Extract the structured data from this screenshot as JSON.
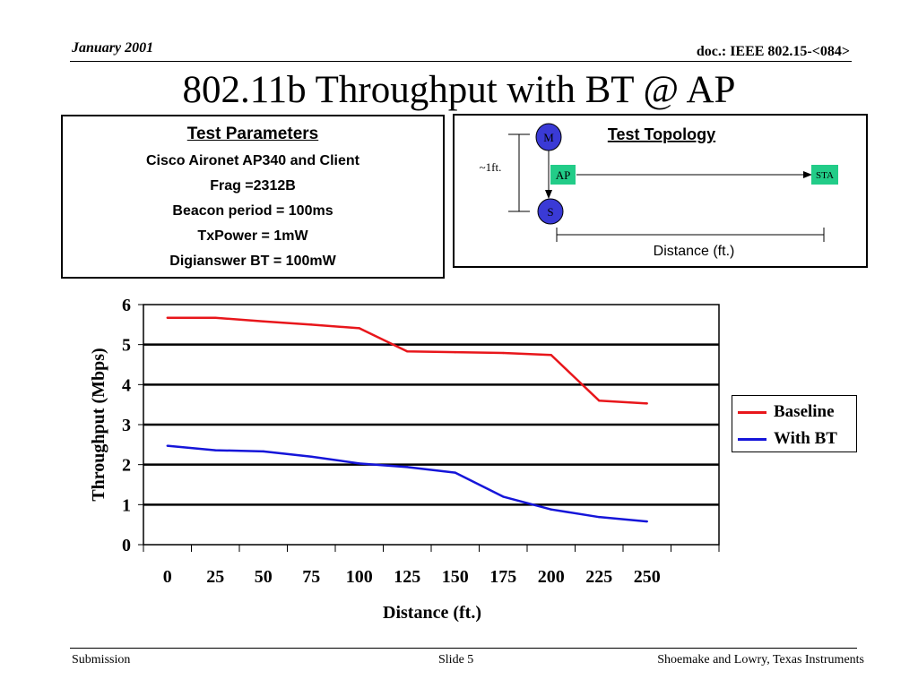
{
  "header": {
    "date": "January 2001",
    "doc": "doc.: IEEE 802.15-<084>"
  },
  "title": "802.11b Throughput with BT @ AP",
  "test_parameters": {
    "heading": "Test Parameters",
    "lines": [
      "Cisco Aironet AP340 and Client",
      "Frag =2312B",
      "Beacon period = 100ms",
      "TxPower = 1mW",
      "Digianswer BT = 100mW"
    ]
  },
  "topology": {
    "heading": "Test Topology",
    "node_m": "M",
    "node_s": "S",
    "node_ap": "AP",
    "node_sta": "STA",
    "separation": "~1ft.",
    "distance_label": "Distance (ft.)",
    "colors": {
      "bt_node": "#3a3ad6",
      "wifi_node": "#22cc88"
    }
  },
  "chart_data": {
    "type": "line",
    "title": "",
    "xlabel": "Distance (ft.)",
    "ylabel": "Throughput (Mbps)",
    "categories": [
      "0",
      "25",
      "50",
      "75",
      "100",
      "125",
      "150",
      "175",
      "200",
      "225",
      "250"
    ],
    "ylim": [
      0,
      6
    ],
    "yticks": [
      "0",
      "1",
      "2",
      "3",
      "4",
      "5",
      "6"
    ],
    "grid": true,
    "legend": "right",
    "series": [
      {
        "name": "Baseline",
        "color": "#e8161b",
        "values": [
          5.67,
          5.67,
          5.58,
          5.5,
          5.41,
          4.83,
          4.81,
          4.79,
          4.74,
          3.6,
          3.53
        ]
      },
      {
        "name": "With BT",
        "color": "#1515d9",
        "values": [
          2.47,
          2.36,
          2.33,
          2.2,
          2.03,
          1.94,
          1.8,
          1.2,
          0.88,
          0.69,
          0.58
        ]
      }
    ]
  },
  "footer": {
    "left": "Submission",
    "center": "Slide 5",
    "right": "Shoemake and Lowry, Texas Instruments"
  }
}
